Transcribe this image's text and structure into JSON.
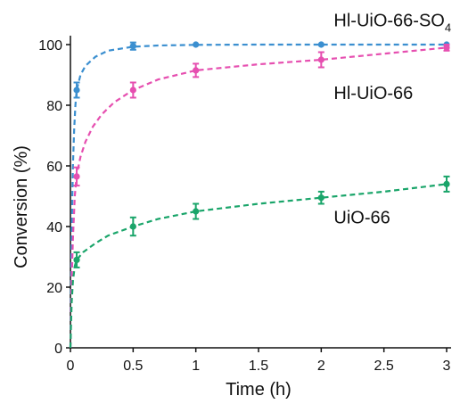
{
  "chart_data": {
    "type": "scatter",
    "xlabel": "Time (h)",
    "ylabel": "Conversion (%)",
    "xlim": [
      0,
      3
    ],
    "ylim": [
      0,
      100
    ],
    "xticks": [
      "0",
      "0.5",
      "1",
      "1.5",
      "2",
      "2.5",
      "3"
    ],
    "yticks": [
      "0",
      "20",
      "40",
      "60",
      "80",
      "100"
    ],
    "grid": false,
    "series": [
      {
        "name": "Hl-UiO-66-SO",
        "name_subscript": "4",
        "color": "#3b8fd0",
        "x": [
          0.05,
          0.5,
          1,
          2,
          3
        ],
        "y": [
          85,
          99.5,
          100,
          100,
          100
        ],
        "err": [
          2.5,
          1.2,
          0,
          0,
          0
        ],
        "fit": [
          [
            0,
            0
          ],
          [
            0.005,
            20
          ],
          [
            0.01,
            38
          ],
          [
            0.02,
            60
          ],
          [
            0.03,
            72
          ],
          [
            0.04,
            80
          ],
          [
            0.05,
            85
          ],
          [
            0.08,
            90
          ],
          [
            0.12,
            93
          ],
          [
            0.2,
            96
          ],
          [
            0.3,
            98
          ],
          [
            0.5,
            99.3
          ],
          [
            0.7,
            99.7
          ],
          [
            1,
            99.9
          ],
          [
            1.5,
            100
          ],
          [
            2,
            100
          ],
          [
            2.5,
            100
          ],
          [
            3,
            100
          ]
        ]
      },
      {
        "name": "Hl-UiO-66",
        "name_subscript": "",
        "color": "#e64fb0",
        "x": [
          0.05,
          0.5,
          1,
          2,
          3
        ],
        "y": [
          56.5,
          85,
          91.5,
          95,
          99
        ],
        "err": [
          3,
          2.5,
          2.2,
          2.5,
          1
        ],
        "fit": [
          [
            0,
            0
          ],
          [
            0.005,
            12
          ],
          [
            0.01,
            22
          ],
          [
            0.02,
            36
          ],
          [
            0.035,
            50
          ],
          [
            0.05,
            57
          ],
          [
            0.08,
            63
          ],
          [
            0.12,
            68
          ],
          [
            0.18,
            73
          ],
          [
            0.25,
            77
          ],
          [
            0.35,
            81
          ],
          [
            0.5,
            85
          ],
          [
            0.7,
            88.5
          ],
          [
            1,
            91.5
          ],
          [
            1.5,
            93.5
          ],
          [
            2,
            95
          ],
          [
            2.5,
            97
          ],
          [
            3,
            99
          ]
        ]
      },
      {
        "name": "UiO-66",
        "name_subscript": "",
        "color": "#1aa56a",
        "x": [
          0.05,
          0.5,
          1,
          2,
          3
        ],
        "y": [
          29,
          40,
          45,
          49.5,
          54
        ],
        "err": [
          2.5,
          3,
          2.5,
          2,
          2.5
        ],
        "fit": [
          [
            0,
            0
          ],
          [
            0.005,
            8
          ],
          [
            0.01,
            15
          ],
          [
            0.02,
            22
          ],
          [
            0.035,
            27
          ],
          [
            0.05,
            29
          ],
          [
            0.1,
            31.5
          ],
          [
            0.2,
            34.5
          ],
          [
            0.3,
            37
          ],
          [
            0.5,
            40
          ],
          [
            0.7,
            42.5
          ],
          [
            1,
            45
          ],
          [
            1.5,
            47.5
          ],
          [
            2,
            49.5
          ],
          [
            2.5,
            51.5
          ],
          [
            3,
            54
          ]
        ]
      }
    ],
    "annotations": [
      {
        "series": 0,
        "text": "Hl-UiO-66-SO",
        "subscript": "4",
        "at": [
          2.1,
          106
        ]
      },
      {
        "series": 1,
        "text": "Hl-UiO-66",
        "subscript": "",
        "at": [
          2.1,
          82
        ]
      },
      {
        "series": 2,
        "text": "UiO-66",
        "subscript": "",
        "at": [
          2.1,
          41
        ]
      }
    ]
  }
}
